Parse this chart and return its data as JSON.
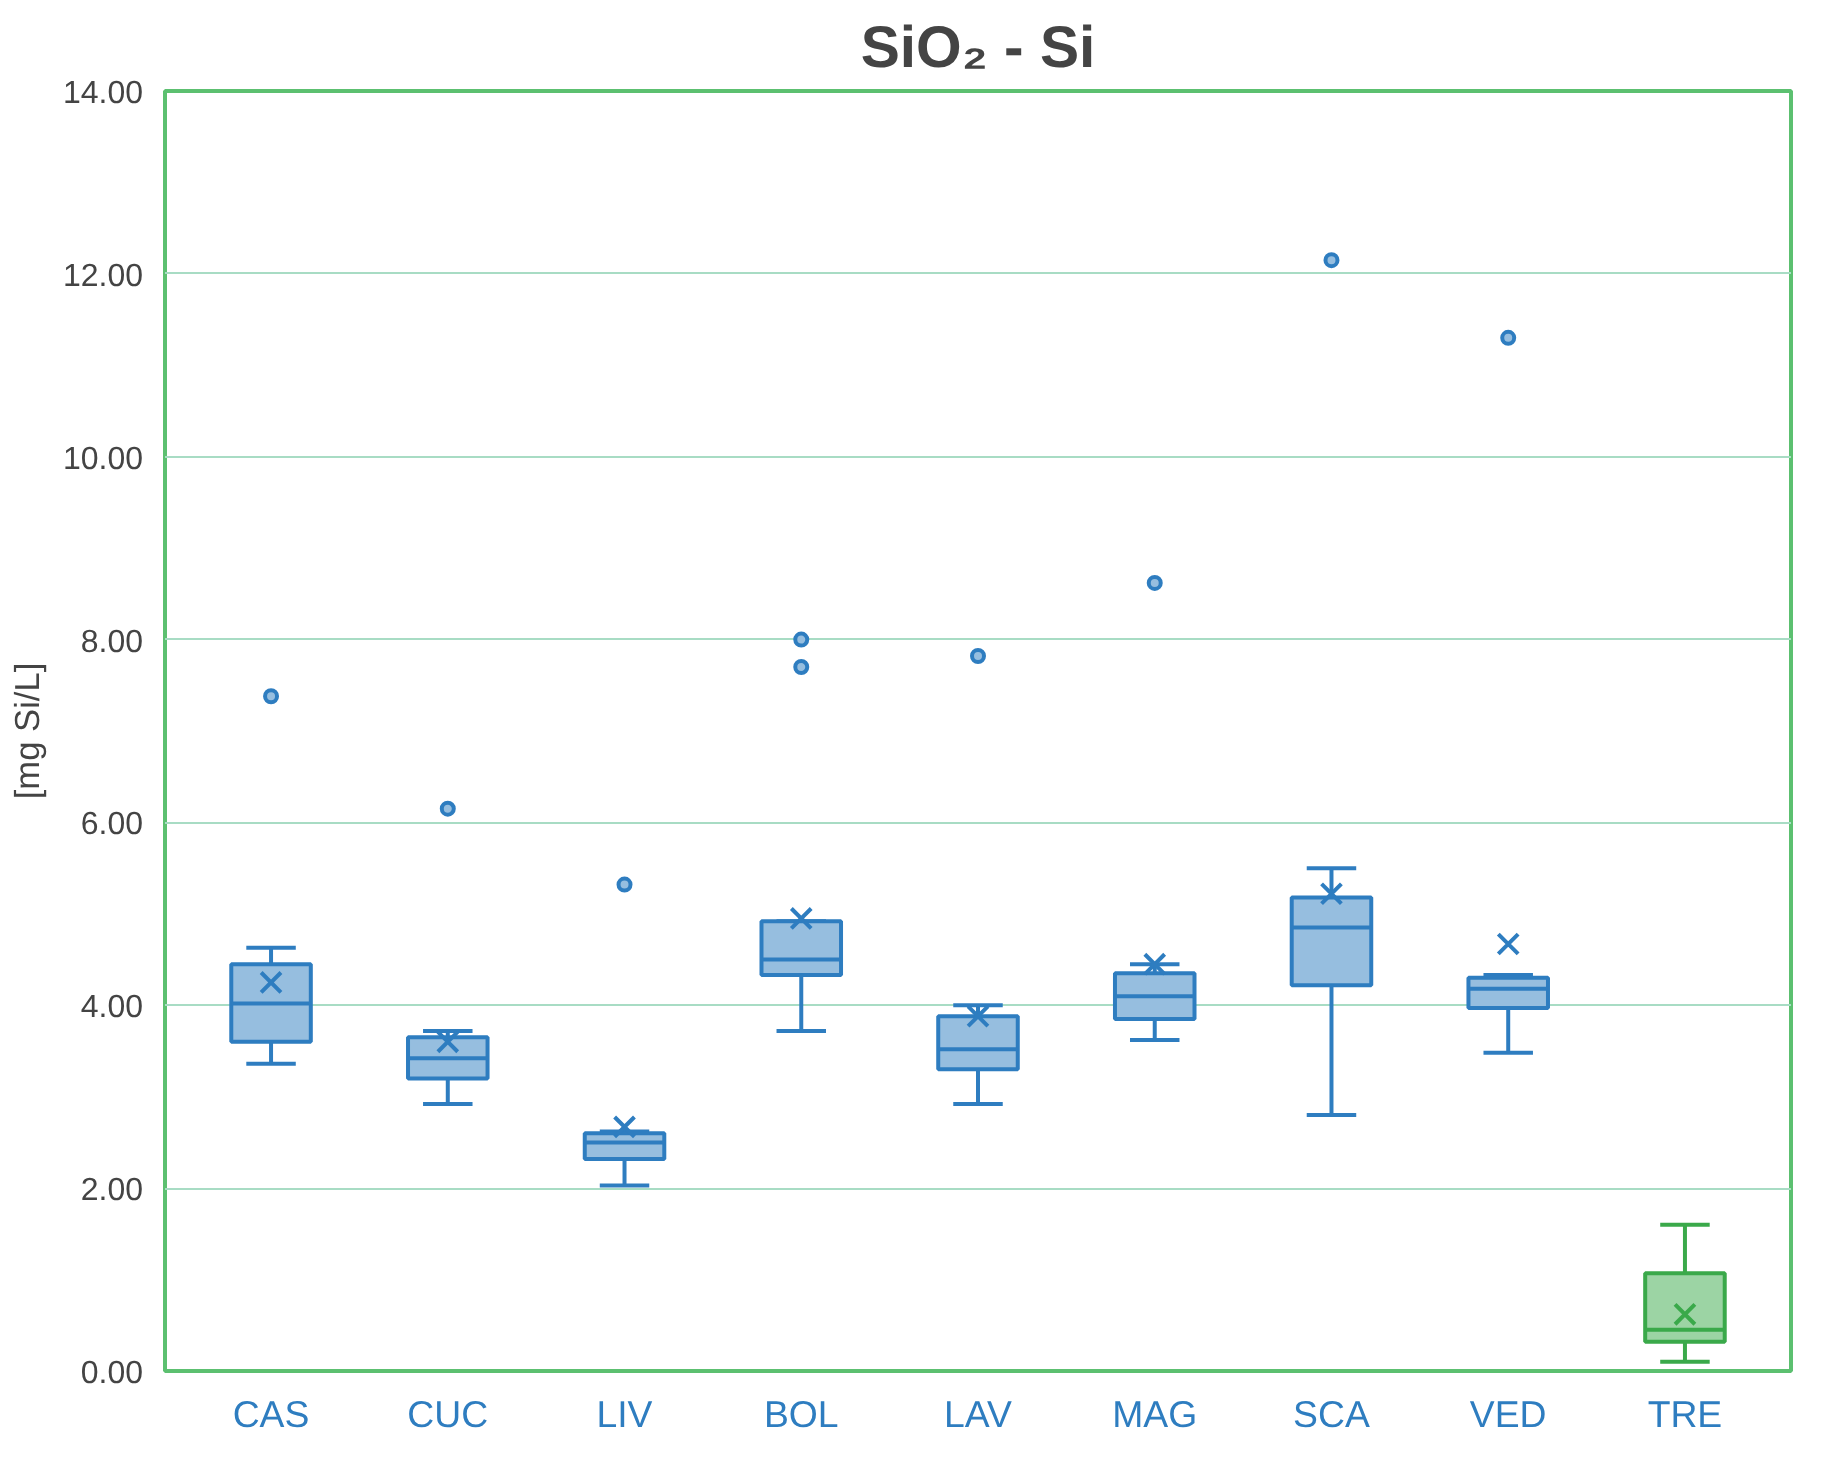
{
  "chart_data": {
    "type": "box",
    "title": "SiO₂ - Si",
    "ylabel": "[mg Si/L]",
    "categories": [
      "CAS",
      "CUC",
      "LIV",
      "BOL",
      "LAV",
      "MAG",
      "SCA",
      "VED",
      "TRE"
    ],
    "series": [
      {
        "color": "#2e7dc0",
        "boxes": [
          {
            "low": 3.36,
            "q1": 3.6,
            "median": 4.02,
            "q3": 4.45,
            "high": 4.63,
            "mean": 4.25,
            "outliers": [
              7.38
            ]
          },
          {
            "low": 2.92,
            "q1": 3.2,
            "median": 3.42,
            "q3": 3.65,
            "high": 3.72,
            "mean": 3.6,
            "outliers": [
              6.15
            ]
          },
          {
            "low": 2.03,
            "q1": 2.32,
            "median": 2.5,
            "q3": 2.6,
            "high": 2.62,
            "mean": 2.67,
            "outliers": [
              5.32
            ]
          },
          {
            "low": 3.72,
            "q1": 4.33,
            "median": 4.5,
            "q3": 4.92,
            "high": 4.92,
            "mean": 4.95,
            "outliers": [
              8.0,
              7.7
            ]
          },
          {
            "low": 2.92,
            "q1": 3.3,
            "median": 3.52,
            "q3": 3.88,
            "high": 4.0,
            "mean": 3.88,
            "outliers": [
              7.82
            ]
          },
          {
            "low": 3.62,
            "q1": 3.85,
            "median": 4.1,
            "q3": 4.35,
            "high": 4.45,
            "mean": 4.45,
            "outliers": [
              8.62
            ]
          },
          {
            "low": 2.8,
            "q1": 4.22,
            "median": 4.85,
            "q3": 5.18,
            "high": 5.5,
            "mean": 5.22,
            "outliers": [
              12.15
            ]
          },
          {
            "low": 3.48,
            "q1": 3.97,
            "median": 4.18,
            "q3": 4.3,
            "high": 4.33,
            "mean": 4.67,
            "outliers": [
              11.3
            ]
          },
          null
        ]
      },
      {
        "color": "#3aa94a",
        "boxes": [
          null,
          null,
          null,
          null,
          null,
          null,
          null,
          null,
          {
            "low": 0.1,
            "q1": 0.32,
            "median": 0.45,
            "q3": 1.07,
            "high": 1.6,
            "mean": 0.62
          }
        ]
      }
    ],
    "ylim": [
      0,
      14
    ],
    "yticks": [
      {
        "value": 0,
        "label": "0.00"
      },
      {
        "value": 2,
        "label": "2.00"
      },
      {
        "value": 4,
        "label": "4.00"
      },
      {
        "value": 6,
        "label": "6.00"
      },
      {
        "value": 8,
        "label": "8.00"
      },
      {
        "value": 10,
        "label": "10.00"
      },
      {
        "value": 12,
        "label": "12.00"
      },
      {
        "value": 14,
        "label": "14.00"
      }
    ],
    "grid": "y"
  }
}
